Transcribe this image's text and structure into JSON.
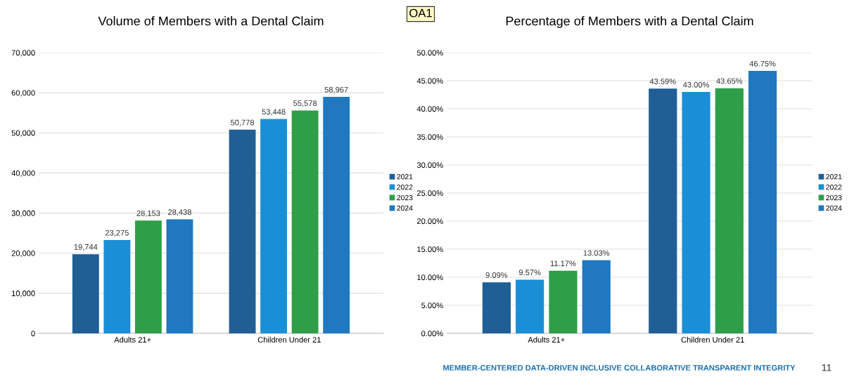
{
  "chart_data": [
    {
      "type": "bar",
      "title": "Volume of Members with a Dental Claim",
      "categories": [
        "Adults 21+",
        "Children Under 21"
      ],
      "series": [
        {
          "name": "2021",
          "color": "#1f5f96",
          "values": [
            19744,
            50778
          ],
          "value_labels": [
            "19,744",
            "50,778"
          ]
        },
        {
          "name": "2022",
          "color": "#1a8fd6",
          "values": [
            23275,
            53448
          ],
          "value_labels": [
            "23,275",
            "53,448"
          ]
        },
        {
          "name": "2023",
          "color": "#2e9e48",
          "values": [
            28153,
            55578
          ],
          "value_labels": [
            "28,153",
            "55,578"
          ]
        },
        {
          "name": "2024",
          "color": "#1f78c0",
          "values": [
            28438,
            58967
          ],
          "value_labels": [
            "28,438",
            "58,967"
          ]
        }
      ],
      "ylim": [
        0,
        70000
      ],
      "yticks": [
        {
          "value": 0,
          "label": "0"
        },
        {
          "value": 10000,
          "label": "10,000"
        },
        {
          "value": 20000,
          "label": "20,000"
        },
        {
          "value": 30000,
          "label": "30,000"
        },
        {
          "value": 40000,
          "label": "40,000"
        },
        {
          "value": 50000,
          "label": "50,000"
        },
        {
          "value": 60000,
          "label": "60,000"
        },
        {
          "value": 70000,
          "label": "70,000"
        }
      ],
      "grid": "y",
      "legend": "right",
      "annotations": [
        "OA1"
      ]
    },
    {
      "type": "bar",
      "title": "Percentage of Members with a Dental Claim",
      "categories": [
        "Adults 21+",
        "Children Under 21"
      ],
      "series": [
        {
          "name": "2021",
          "color": "#1f5f96",
          "values": [
            9.09,
            43.59
          ],
          "value_labels": [
            "9.09%",
            "43.59%"
          ]
        },
        {
          "name": "2022",
          "color": "#1a8fd6",
          "values": [
            9.57,
            43.0
          ],
          "value_labels": [
            "9.57%",
            "43.00%"
          ]
        },
        {
          "name": "2023",
          "color": "#2e9e48",
          "values": [
            11.17,
            43.65
          ],
          "value_labels": [
            "11.17%",
            "43.65%"
          ]
        },
        {
          "name": "2024",
          "color": "#1f78c0",
          "values": [
            13.03,
            46.75
          ],
          "value_labels": [
            "13.03%",
            "46.75%"
          ]
        }
      ],
      "ylim": [
        0,
        50
      ],
      "yticks": [
        {
          "value": 0,
          "label": "0.00%"
        },
        {
          "value": 5,
          "label": "5.00%"
        },
        {
          "value": 10,
          "label": "10.00%"
        },
        {
          "value": 15,
          "label": "15.00%"
        },
        {
          "value": 20,
          "label": "20.00%"
        },
        {
          "value": 25,
          "label": "25.00%"
        },
        {
          "value": 30,
          "label": "30.00%"
        },
        {
          "value": 35,
          "label": "35.00%"
        },
        {
          "value": 40,
          "label": "40.00%"
        },
        {
          "value": 45,
          "label": "45.00%"
        },
        {
          "value": 50,
          "label": "50.00%"
        }
      ],
      "grid": "y",
      "legend": "right",
      "annotations": [
        "MEMBER-CENTERED DATA-DRIVEN INCLUSIVE COLLABORATIVE TRANSPARENT INTEGRITY",
        "11"
      ]
    }
  ]
}
